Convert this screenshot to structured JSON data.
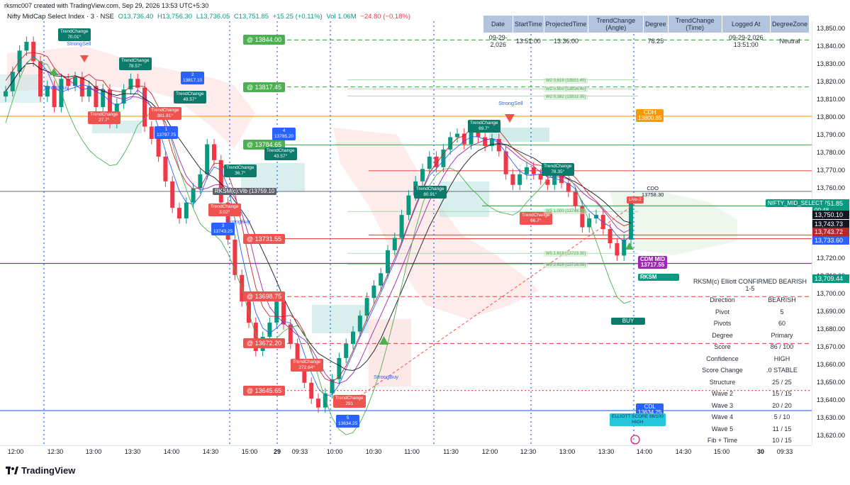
{
  "header": {
    "credit": "rksmc007 created with TradingView.com, Sep 29, 2026 13:53 UTC+5:30",
    "symbol": "Nifty MidCap Select Index · 3 · NSE",
    "o": "O13,736.40",
    "h": "H13,756.30",
    "l": "L13,736.05",
    "c": "C13,751.85",
    "chg": "+15.25 (+0.11%)",
    "vol": "Vol 1.06M",
    "vchg": "−24.80 (−0.18%)"
  },
  "y_axis": {
    "ticks": [
      "13,850.00",
      "13,840.00",
      "13,830.00",
      "13,820.00",
      "13,810.00",
      "13,800.00",
      "13,790.00",
      "13,780.00",
      "13,770.00",
      "13,760.00",
      "13,750.00",
      "13,740.00",
      "13,730.00",
      "13,720.00",
      "13,710.00",
      "13,700.00",
      "13,690.00",
      "13,680.00",
      "13,670.00",
      "13,660.00",
      "13,650.00",
      "13,640.00",
      "13,630.00",
      "13,620.00"
    ],
    "range": [
      13614.6,
      13854.6
    ]
  },
  "x_axis": {
    "ticks": [
      "12:00",
      "12:30",
      "13:00",
      "13:30",
      "14:00",
      "14:30",
      "15:00",
      "29",
      "09:33",
      "10:00",
      "10:30",
      "11:00",
      "11:30",
      "12:00",
      "12:30",
      "13:00",
      "13:30",
      "14:00",
      "14:30",
      "15:00",
      "30",
      "09:33"
    ]
  },
  "price_tags": [
    {
      "text": "13,751.85",
      "sub": "00:48",
      "color": "#089981"
    },
    {
      "text": "13,750.10",
      "color": "#131722"
    },
    {
      "text": "13,743.73",
      "color": "#131722"
    },
    {
      "text": "13,743.72",
      "color": "#b22833"
    },
    {
      "text": "13,733.60",
      "color": "#2962ff"
    },
    {
      "text": "13,709.44",
      "color": "#089981"
    }
  ],
  "symbol_tag": "NIFTY_MID_SELECT",
  "levels": [
    {
      "text": "@ 13844.00",
      "color": "#4caf50"
    },
    {
      "text": "@ 13817.45",
      "color": "#4caf50"
    },
    {
      "text": "@ 13784.65",
      "color": "#4caf50"
    },
    {
      "text": "@ 13731.55",
      "color": "#ef5350"
    },
    {
      "text": "@ 13698.75",
      "color": "#ef5350"
    },
    {
      "text": "@ 13672.20",
      "color": "#ef5350"
    },
    {
      "text": "@ 13645.65",
      "color": "#ef5350"
    }
  ],
  "trend_table": {
    "headers": [
      "Date",
      "StartTime",
      "ProjectedTime",
      "TrendChange (Angle)",
      "Degree",
      "TrendChange (Time)",
      "Logged At",
      "DegreeZone"
    ],
    "row": [
      "09-29-2,026",
      "13:51:00",
      "13:36:00",
      "",
      "78.25",
      "",
      "09-29-2,026 13:51:00",
      "Neutral"
    ]
  },
  "elliott_table": {
    "title": "RKSM(c) Elliott   CONFIRMED BEARISH 1-5",
    "rows": [
      [
        "Direction",
        "BEARISH"
      ],
      [
        "Pivot",
        "5"
      ],
      [
        "Pivots",
        "60"
      ],
      [
        "Degree",
        "Primary"
      ],
      [
        "Score",
        "86 / 100"
      ],
      [
        "Confidence",
        "HIGH"
      ],
      [
        "Score Change",
        ".0 STABLE"
      ],
      [
        "Structure",
        "25 / 25"
      ],
      [
        "Wave 2",
        "15 / 15"
      ],
      [
        "Wave 3",
        "20 / 20"
      ],
      [
        "Wave 4",
        "5 / 10"
      ],
      [
        "Wave 5",
        "11 / 15"
      ],
      [
        "Fib + Time",
        "10 / 15"
      ]
    ]
  },
  "annotations": {
    "cdh": "CDH",
    "cdh_val": "13800.85",
    "cdo": "CDO",
    "cdo_val": "13758.30",
    "cdm": "CDM MID",
    "cdm_val": "13717.55",
    "cdl": "CDL",
    "cdl_val": "13634.25",
    "live": "Live-2",
    "rksm": "RKSM",
    "buy": "BUY",
    "score_box": "ELLIOTT SCORE 86/100",
    "score_box2": "HIGH",
    "strong_sell_1": "StrongSell",
    "strong_sell_2": "StrongSell",
    "strong_buy_1": "StrongBuy",
    "strong_buy_2": "StrongBuy",
    "strong_buy_3": "StrongBuy",
    "rksm_vib": "RKSM(c):Vib (13759.10",
    "tc_labels": [
      {
        "t": "TrendChange",
        "v": "70.01°"
      },
      {
        "t": "TrendChange",
        "v": "78.57°"
      },
      {
        "t": "TrendChange",
        "v": "49.57°"
      },
      {
        "t": "TrendChange",
        "v": "43.57°"
      },
      {
        "t": "TrendChange",
        "v": "80.91°"
      },
      {
        "t": "TrendChange",
        "v": "69.7°"
      },
      {
        "t": "TrendChange",
        "v": "78.35°"
      },
      {
        "t": "TrendChange",
        "v": "27.7°"
      },
      {
        "t": "TrendChange",
        "v": "381.81°"
      },
      {
        "t": "TrendChange",
        "v": "3.02°"
      },
      {
        "t": "TrendChange",
        "v": "272.64°"
      },
      {
        "t": "TrendChange",
        "v": "291"
      },
      {
        "t": "TrendChange",
        "v": "36.7°"
      },
      {
        "t": "TrendChange",
        "v": "66.7°"
      }
    ],
    "pivots": [
      {
        "n": "1",
        "v": "13797.75"
      },
      {
        "n": "2",
        "v": "13817.10"
      },
      {
        "n": "3",
        "v": "13743.25"
      },
      {
        "n": "4",
        "v": "13785.20"
      },
      {
        "n": "5",
        "v": "13634.25"
      }
    ],
    "fibs": [
      "W2 0.618 (13821.40)",
      "W2 0.500 (13816.40)",
      "W2 0.382 (13812.35)",
      "W5 1.000 (13746.95)",
      "W5 1.618 (13723.30)",
      "W5 2.618 (13716.95)"
    ]
  },
  "colors": {
    "up": "#089981",
    "down": "#f23645",
    "cdh": "#ff9800",
    "cdm": "#9c27b0",
    "cdl": "#2962ff",
    "green": "#4caf50",
    "red": "#ef5350"
  },
  "chart_data": {
    "type": "candlestick",
    "title": "Nifty MidCap Select Index · 3 · NSE",
    "ylim": [
      13614.6,
      13854.6
    ],
    "x": [
      "12:00",
      "12:30",
      "13:00",
      "13:30",
      "14:00",
      "14:30",
      "15:00",
      "29",
      "09:33",
      "10:00",
      "10:30",
      "11:00",
      "11:30",
      "12:00",
      "12:30",
      "13:00",
      "13:30",
      "14:00"
    ],
    "close_path": [
      13815,
      13826,
      13838,
      13843,
      13832,
      13812,
      13818,
      13806,
      13822,
      13818,
      13823,
      13812,
      13818,
      13806,
      13816,
      13797,
      13808,
      13816,
      13822,
      13817,
      13795,
      13788,
      13778,
      13764,
      13749,
      13743,
      13752,
      13760,
      13768,
      13785,
      13776,
      13752,
      13731,
      13711,
      13696,
      13684,
      13668,
      13676,
      13684,
      13696,
      13683,
      13672,
      13660,
      13650,
      13641,
      13636,
      13644,
      13652,
      13664,
      13672,
      13679,
      13688,
      13698,
      13705,
      13712,
      13725,
      13732,
      13745,
      13756,
      13764,
      13771,
      13778,
      13772,
      13782,
      13789,
      13791,
      13785,
      13792,
      13789,
      13784,
      13788,
      13781,
      13768,
      13762,
      13768,
      13772,
      13768,
      13765,
      13762,
      13768,
      13763,
      13758,
      13750,
      13738,
      13743,
      13745,
      13737,
      13729,
      13722,
      13731,
      13751.85
    ],
    "horizontal_levels": [
      13844.0,
      13817.45,
      13800.85,
      13784.65,
      13770.0,
      13758.3,
      13750.1,
      13733.6,
      13731.55,
      13717.55,
      13698.75,
      13672.2,
      13645.65,
      13634.25
    ]
  }
}
